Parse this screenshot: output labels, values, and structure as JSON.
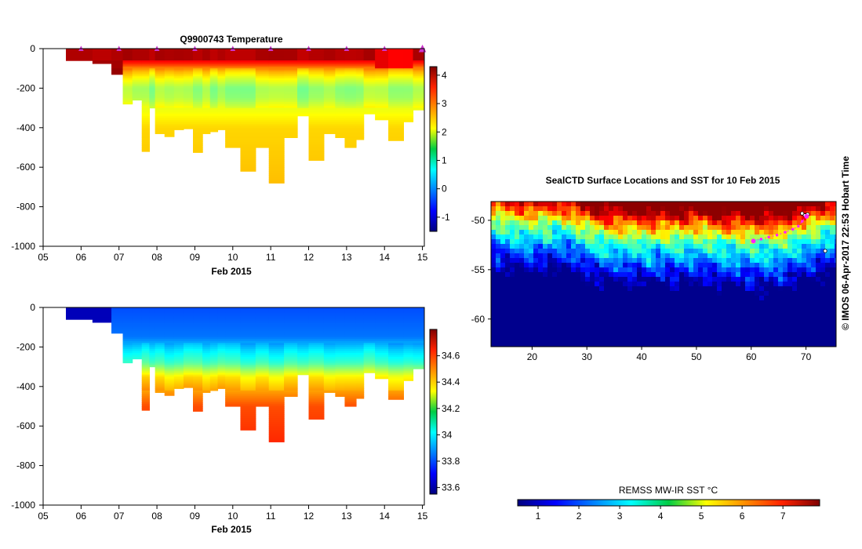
{
  "copyright": "© IMOS 06-Apr-2017 22:53 Hobart Time",
  "colors": {
    "background": "#ffffff",
    "station_marker": "#cc33cc",
    "seal_track": "#ff22ff"
  },
  "chart_data": [
    {
      "type": "heatmap",
      "panel": "temperature",
      "title": "Q9900743  Temperature",
      "xlabel": "Feb 2015",
      "ylabel": "",
      "xtick_labels": [
        "05",
        "06",
        "07",
        "08",
        "09",
        "10",
        "11",
        "12",
        "13",
        "14",
        "15"
      ],
      "xlim": [
        5,
        15.05
      ],
      "yticks": [
        0,
        -200,
        -400,
        -600,
        -800,
        -1000
      ],
      "ylim": [
        -1000,
        0
      ],
      "colorbar": {
        "ticks": [
          4,
          3,
          2,
          1,
          0,
          -1
        ],
        "range": [
          -1.5,
          4.3
        ],
        "cmap": "jet"
      },
      "station_days": [
        6,
        7,
        8,
        9,
        10,
        11,
        12,
        13,
        14,
        15
      ],
      "profiles": [
        {
          "t0": 5.6,
          "t1": 6.3,
          "depth": 60
        },
        {
          "t0": 6.3,
          "t1": 6.8,
          "depth": 75
        },
        {
          "t0": 6.8,
          "t1": 7.1,
          "depth": 130
        },
        {
          "t0": 7.1,
          "t1": 7.35,
          "depth": 280
        },
        {
          "t0": 7.35,
          "t1": 7.6,
          "depth": 260
        },
        {
          "t0": 7.6,
          "t1": 7.8,
          "depth": 520
        },
        {
          "t0": 7.8,
          "t1": 7.95,
          "depth": 300
        },
        {
          "t0": 7.95,
          "t1": 8.2,
          "depth": 430
        },
        {
          "t0": 8.2,
          "t1": 8.45,
          "depth": 445
        },
        {
          "t0": 8.45,
          "t1": 8.7,
          "depth": 410
        },
        {
          "t0": 8.7,
          "t1": 8.95,
          "depth": 405
        },
        {
          "t0": 8.95,
          "t1": 9.2,
          "depth": 525
        },
        {
          "t0": 9.2,
          "t1": 9.4,
          "depth": 430
        },
        {
          "t0": 9.4,
          "t1": 9.6,
          "depth": 420
        },
        {
          "t0": 9.6,
          "t1": 9.8,
          "depth": 410
        },
        {
          "t0": 9.8,
          "t1": 10.2,
          "depth": 500
        },
        {
          "t0": 10.2,
          "t1": 10.6,
          "depth": 620
        },
        {
          "t0": 10.6,
          "t1": 10.95,
          "depth": 500
        },
        {
          "t0": 10.95,
          "t1": 11.35,
          "depth": 680
        },
        {
          "t0": 11.35,
          "t1": 11.7,
          "depth": 450
        },
        {
          "t0": 11.7,
          "t1": 12.0,
          "depth": 340
        },
        {
          "t0": 12.0,
          "t1": 12.4,
          "depth": 565
        },
        {
          "t0": 12.4,
          "t1": 12.7,
          "depth": 430
        },
        {
          "t0": 12.7,
          "t1": 12.95,
          "depth": 450
        },
        {
          "t0": 12.95,
          "t1": 13.25,
          "depth": 500
        },
        {
          "t0": 13.25,
          "t1": 13.45,
          "depth": 460
        },
        {
          "t0": 13.45,
          "t1": 13.75,
          "depth": 330
        },
        {
          "t0": 13.75,
          "t1": 14.1,
          "depth": 360
        },
        {
          "t0": 14.1,
          "t1": 14.5,
          "depth": 465
        },
        {
          "t0": 14.5,
          "t1": 14.75,
          "depth": 370
        },
        {
          "t0": 14.75,
          "t1": 15.05,
          "depth": 310
        }
      ],
      "typical_profile": [
        {
          "depth": 0,
          "value": 4.1
        },
        {
          "depth": 50,
          "value": 3.8
        },
        {
          "depth": 80,
          "value": 3.3
        },
        {
          "depth": 110,
          "value": 2.5
        },
        {
          "depth": 150,
          "value": 2.0
        },
        {
          "depth": 200,
          "value": 1.5
        },
        {
          "depth": 250,
          "value": 1.6
        },
        {
          "depth": 300,
          "value": 2.0
        },
        {
          "depth": 400,
          "value": 2.35
        },
        {
          "depth": 700,
          "value": 2.5
        }
      ]
    },
    {
      "type": "heatmap",
      "panel": "salinity",
      "title": "",
      "xlabel": "Feb 2015",
      "ylabel": "",
      "xtick_labels": [
        "05",
        "06",
        "07",
        "08",
        "09",
        "10",
        "11",
        "12",
        "13",
        "14",
        "15"
      ],
      "xlim": [
        5,
        15.05
      ],
      "yticks": [
        0,
        -200,
        -400,
        -600,
        -800,
        -1000
      ],
      "ylim": [
        -1000,
        0
      ],
      "colorbar": {
        "ticks": [
          34.6,
          34.4,
          34.2,
          34,
          33.8,
          33.6
        ],
        "range": [
          33.55,
          34.8
        ],
        "cmap": "jet"
      },
      "typical_profile": [
        {
          "depth": 0,
          "value": 33.8
        },
        {
          "depth": 150,
          "value": 33.85
        },
        {
          "depth": 220,
          "value": 34.0
        },
        {
          "depth": 280,
          "value": 34.1
        },
        {
          "depth": 350,
          "value": 34.35
        },
        {
          "depth": 500,
          "value": 34.55
        },
        {
          "depth": 700,
          "value": 34.6
        }
      ],
      "early_fresh_value": 33.62
    },
    {
      "type": "heatmap",
      "panel": "map",
      "title": "SealCTD Surface Locations and SST for 10 Feb 2015",
      "xlabel": "",
      "ylabel": "",
      "xticks": [
        20,
        30,
        40,
        50,
        60,
        70
      ],
      "yticks": [
        -50,
        -55,
        -60
      ],
      "xlim": [
        12.5,
        75.5
      ],
      "ylim": [
        -62.8,
        -48.1
      ],
      "colorbar": {
        "label": "REMSS MW-IR SST °C",
        "ticks": [
          1,
          2,
          3,
          4,
          5,
          6,
          7
        ],
        "range": [
          0.5,
          7.9
        ],
        "cmap": "jet"
      },
      "sst_front_lat": [
        {
          "lon": 13,
          "lat": -50.2
        },
        {
          "lon": 20,
          "lat": -50.6
        },
        {
          "lon": 25,
          "lat": -50.3
        },
        {
          "lon": 32,
          "lat": -51.6
        },
        {
          "lon": 40,
          "lat": -51.9
        },
        {
          "lon": 50,
          "lat": -51.7
        },
        {
          "lon": 58,
          "lat": -52.2
        },
        {
          "lon": 65,
          "lat": -52.2
        },
        {
          "lon": 75,
          "lat": -50.6
        }
      ],
      "track": [
        {
          "lon": 60.4,
          "lat": -52.1
        },
        {
          "lon": 61.8,
          "lat": -51.9
        },
        {
          "lon": 63.2,
          "lat": -51.7
        },
        {
          "lon": 64.7,
          "lat": -51.5
        },
        {
          "lon": 66.2,
          "lat": -51.2
        },
        {
          "lon": 67.6,
          "lat": -50.9
        },
        {
          "lon": 68.6,
          "lat": -50.6
        },
        {
          "lon": 69.3,
          "lat": -50.1
        },
        {
          "lon": 70.1,
          "lat": -49.6
        }
      ],
      "islands": [
        {
          "lon": 69.3,
          "lat": -49.3
        },
        {
          "lon": 69.8,
          "lat": -49.5
        },
        {
          "lon": 70.3,
          "lat": -49.4
        },
        {
          "lon": 73.5,
          "lat": -53.1
        }
      ]
    }
  ]
}
